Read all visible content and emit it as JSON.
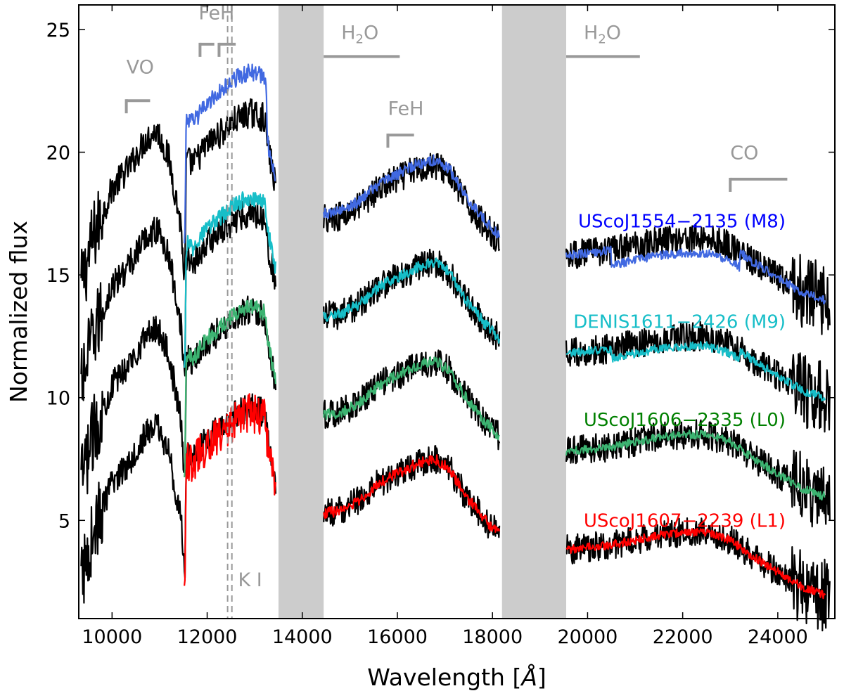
{
  "chart_data": {
    "type": "line",
    "title": "",
    "xlabel": "Wavelength [",
    "xlabel_unit": "Å",
    "xlabel_close": "]",
    "ylabel": "Normalized flux",
    "xlim": [
      9300,
      25200
    ],
    "ylim": [
      1,
      26
    ],
    "x_ticks": [
      10000,
      12000,
      14000,
      16000,
      18000,
      20000,
      22000,
      24000
    ],
    "y_ticks": [
      5,
      10,
      15,
      20,
      25
    ],
    "masked_regions": [
      [
        13500,
        14450
      ],
      [
        18200,
        19550
      ]
    ],
    "features": [
      {
        "name": "VO",
        "type": "bracket",
        "x0": 10300,
        "x1": 10800,
        "y": 22.1,
        "label_y": 23.5
      },
      {
        "name": "FeH",
        "type": "double-bracket",
        "x0": 11850,
        "x1": 12150,
        "x2": 12250,
        "x3": 12600,
        "y": 24.4,
        "label_y": 25.7
      },
      {
        "name": "K I",
        "type": "dashed",
        "x": [
          12430,
          12520
        ],
        "label_x": 12650,
        "label_y": 2.6
      },
      {
        "name": "H2O",
        "type": "bar",
        "x0": 14450,
        "x1": 16050,
        "y": 23.9,
        "label_y": 24.9
      },
      {
        "name": "FeH",
        "type": "bracket",
        "x0": 15800,
        "x1": 16350,
        "y": 20.7,
        "label_y": 21.8
      },
      {
        "name": "H2O",
        "type": "bar",
        "x0": 19550,
        "x1": 21100,
        "y": 23.9,
        "label_y": 24.9
      },
      {
        "name": "CO",
        "type": "bracket",
        "x0": 23000,
        "x1": 24200,
        "y": 18.9,
        "label_y": 20.0
      }
    ],
    "series": [
      {
        "name": "UScoJ1554-2135 (M8)",
        "label": "UScoJ1554−2135 (M8)",
        "color": "#4169e1",
        "offset": 15.5,
        "label_y": 17.2
      },
      {
        "name": "DENIS1611-2426 (M9)",
        "label": "DENIS1611−2426 (M9)",
        "color": "#17bec8",
        "offset": 11.5,
        "label_y": 13.1
      },
      {
        "name": "UScoJ1606-2335 (L0)",
        "label": "UScoJ1606−2335 (L0)",
        "color": "#3cb371",
        "offset": 7.5,
        "label_y": 9.1
      },
      {
        "name": "UScoJ1607-2239 (L1)",
        "label": "UScoJ1607−2239 (L1)",
        "color": "#ff0000",
        "offset": 3.5,
        "label_y": 5.0
      }
    ],
    "series_label_colors": [
      "#0000ff",
      "#17bec8",
      "#008000",
      "#ff0000"
    ],
    "template_color": "#000000",
    "feature_color": "#999999",
    "mask_color": "#cccccc"
  }
}
